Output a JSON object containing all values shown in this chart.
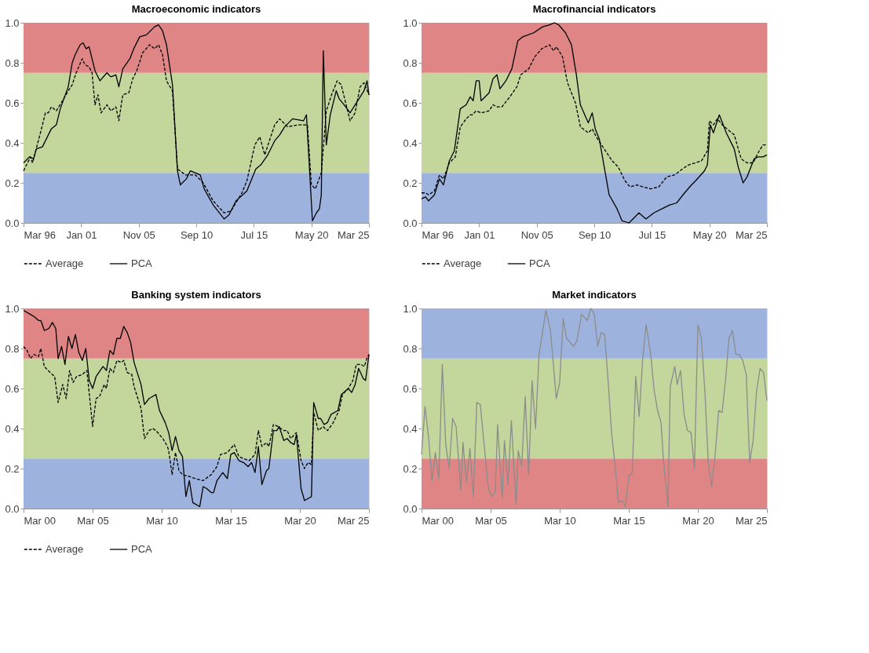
{
  "chart_data": [
    {
      "type": "line",
      "title": "Macroeconomic indicators",
      "legend": "bottom",
      "xlim": [
        "1996-03",
        "2025-03"
      ],
      "xticks": [
        {
          "value": "1996-03",
          "label": "Mar 96"
        },
        {
          "value": "2001-01",
          "label": "Jan 01"
        },
        {
          "value": "2005-11",
          "label": "Nov 05"
        },
        {
          "value": "2010-09",
          "label": "Sep 10"
        },
        {
          "value": "2015-07",
          "label": "Jul 15"
        },
        {
          "value": "2020-05",
          "label": "May 20"
        },
        {
          "value": "2025-03",
          "label": "Mar 25"
        }
      ],
      "ylim": [
        0,
        1
      ],
      "yticks": [
        {
          "value": 0,
          "label": "0.0"
        },
        {
          "value": 0.2,
          "label": "0.2"
        },
        {
          "value": 0.4,
          "label": "0.4"
        },
        {
          "value": 0.6,
          "label": "0.6"
        },
        {
          "value": 0.8,
          "label": "0.8"
        },
        {
          "value": 1,
          "label": "1.0"
        }
      ],
      "bands": [
        {
          "axis": "y",
          "from": 0,
          "to": 0.25,
          "color": "#9db3dd"
        },
        {
          "axis": "y",
          "from": 0.25,
          "to": 0.75,
          "color": "#c3d69b"
        },
        {
          "axis": "y",
          "from": 0.75,
          "to": 1,
          "color": "#e08585"
        }
      ],
      "series": [
        {
          "name": "Average",
          "color": "#000000",
          "line_style": "dashed",
          "x": [
            "1996-03",
            "1996-10",
            "1996-12",
            "1997-08",
            "1998-01",
            "1998-04",
            "1998-07",
            "1998-12",
            "1999-05",
            "1999-12",
            "2000-04",
            "2000-08",
            "2001-02",
            "2001-05",
            "2001-09",
            "2001-12",
            "2002-03",
            "2002-06",
            "2002-09",
            "2003-03",
            "2003-07",
            "2003-12",
            "2004-03",
            "2004-07",
            "2005-01",
            "2005-05",
            "2005-09",
            "2006-03",
            "2006-10",
            "2007-03",
            "2007-07",
            "2007-11",
            "2008-03",
            "2008-09",
            "2009-02",
            "2009-10",
            "2010-08",
            "2011-04",
            "2012-02",
            "2013-01",
            "2013-08",
            "2014-07",
            "2014-12",
            "2015-08",
            "2016-01",
            "2016-06",
            "2016-08",
            "2017-04",
            "2017-09",
            "2018-05",
            "2019-04",
            "2020-01",
            "2020-05",
            "2020-09",
            "2021-03",
            "2021-08",
            "2022-02",
            "2022-07",
            "2022-11",
            "2023-08",
            "2024-01",
            "2024-06",
            "2024-10",
            "2025-03"
          ],
          "values": [
            0.26,
            0.33,
            0.3,
            0.45,
            0.55,
            0.55,
            0.58,
            0.56,
            0.6,
            0.66,
            0.69,
            0.75,
            0.82,
            0.79,
            0.78,
            0.75,
            0.59,
            0.64,
            0.55,
            0.59,
            0.56,
            0.58,
            0.51,
            0.64,
            0.65,
            0.72,
            0.76,
            0.85,
            0.89,
            0.87,
            0.89,
            0.84,
            0.71,
            0.66,
            0.27,
            0.24,
            0.24,
            0.2,
            0.11,
            0.05,
            0.06,
            0.15,
            0.21,
            0.39,
            0.43,
            0.34,
            0.37,
            0.49,
            0.52,
            0.48,
            0.49,
            0.49,
            0.19,
            0.17,
            0.25,
            0.56,
            0.65,
            0.71,
            0.69,
            0.51,
            0.55,
            0.68,
            0.7,
            0.64
          ]
        },
        {
          "name": "PCA",
          "color": "#000000",
          "line_style": "solid",
          "x": [
            "1996-03",
            "1996-09",
            "1997-01",
            "1997-04",
            "1997-10",
            "1998-07",
            "1998-12",
            "1999-04",
            "1999-12",
            "2000-04",
            "2000-07",
            "2000-12",
            "2001-03",
            "2001-06",
            "2001-09",
            "2002-03",
            "2002-08",
            "2003-03",
            "2003-07",
            "2003-12",
            "2004-03",
            "2004-07",
            "2005-02",
            "2005-06",
            "2005-12",
            "2006-07",
            "2007-03",
            "2007-07",
            "2007-11",
            "2008-03",
            "2008-09",
            "2009-02",
            "2009-05",
            "2009-11",
            "2010-03",
            "2011-01",
            "2011-05",
            "2012-02",
            "2013-01",
            "2013-06",
            "2014-01",
            "2014-12",
            "2015-09",
            "2016-02",
            "2016-09",
            "2017-04",
            "2017-09",
            "2018-02",
            "2018-10",
            "2019-09",
            "2019-12",
            "2020-06",
            "2020-10",
            "2021-01",
            "2021-03",
            "2021-05",
            "2021-08",
            "2021-12",
            "2022-06",
            "2022-09",
            "2023-02",
            "2023-08",
            "2024-01",
            "2024-10",
            "2025-01",
            "2025-03"
          ],
          "values": [
            0.3,
            0.33,
            0.32,
            0.37,
            0.38,
            0.47,
            0.49,
            0.57,
            0.68,
            0.8,
            0.84,
            0.89,
            0.9,
            0.87,
            0.88,
            0.76,
            0.71,
            0.75,
            0.73,
            0.74,
            0.68,
            0.77,
            0.82,
            0.87,
            0.93,
            0.94,
            0.98,
            0.99,
            0.96,
            0.89,
            0.69,
            0.26,
            0.19,
            0.22,
            0.26,
            0.24,
            0.17,
            0.09,
            0.02,
            0.04,
            0.11,
            0.16,
            0.27,
            0.29,
            0.34,
            0.41,
            0.44,
            0.48,
            0.52,
            0.51,
            0.54,
            0.01,
            0.05,
            0.07,
            0.14,
            0.86,
            0.39,
            0.54,
            0.66,
            0.62,
            0.59,
            0.55,
            0.59,
            0.66,
            0.71,
            0.64
          ]
        }
      ]
    },
    {
      "type": "line",
      "title": "Macrofinancial indicators",
      "legend": "bottom",
      "xlim": [
        "1996-03",
        "2025-03"
      ],
      "xticks": [
        {
          "value": "1996-03",
          "label": "Mar 96"
        },
        {
          "value": "2001-01",
          "label": "Jan 01"
        },
        {
          "value": "2005-11",
          "label": "Nov 05"
        },
        {
          "value": "2010-09",
          "label": "Sep 10"
        },
        {
          "value": "2015-07",
          "label": "Jul 15"
        },
        {
          "value": "2020-05",
          "label": "May 20"
        },
        {
          "value": "2025-03",
          "label": "Mar 25"
        }
      ],
      "ylim": [
        0,
        1
      ],
      "yticks": [
        {
          "value": 0,
          "label": "0.0"
        },
        {
          "value": 0.2,
          "label": "0.2"
        },
        {
          "value": 0.4,
          "label": "0.4"
        },
        {
          "value": 0.6,
          "label": "0.6"
        },
        {
          "value": 0.8,
          "label": "0.8"
        },
        {
          "value": 1,
          "label": "1.0"
        }
      ],
      "bands": [
        {
          "axis": "y",
          "from": 0,
          "to": 0.25,
          "color": "#9db3dd"
        },
        {
          "axis": "y",
          "from": 0.25,
          "to": 0.75,
          "color": "#c3d69b"
        },
        {
          "axis": "y",
          "from": 0.75,
          "to": 1,
          "color": "#e08585"
        }
      ],
      "series": [
        {
          "name": "Average",
          "color": "#000000",
          "line_style": "dashed",
          "x": [
            "1996-03",
            "1996-07",
            "1996-10",
            "1997-04",
            "1997-09",
            "1998-01",
            "1998-07",
            "1999-01",
            "1999-06",
            "1999-12",
            "2000-04",
            "2000-06",
            "2000-10",
            "2001-03",
            "2001-11",
            "2002-03",
            "2002-07",
            "2002-12",
            "2003-08",
            "2004-03",
            "2004-07",
            "2005-03",
            "2005-09",
            "2006-04",
            "2006-12",
            "2007-04",
            "2007-07",
            "2008-01",
            "2008-06",
            "2009-02",
            "2009-07",
            "2010-03",
            "2010-07",
            "2010-11",
            "2011-07",
            "2012-03",
            "2012-09",
            "2013-04",
            "2013-09",
            "2014-04",
            "2014-10",
            "2015-06",
            "2016-02",
            "2016-10",
            "2017-06",
            "2018-02",
            "2018-08",
            "2019-03",
            "2019-09",
            "2020-03",
            "2020-05",
            "2020-09",
            "2021-01",
            "2021-06",
            "2022-01",
            "2022-06",
            "2023-01",
            "2023-07",
            "2024-01",
            "2024-06",
            "2024-11",
            "2025-03"
          ],
          "values": [
            0.15,
            0.15,
            0.14,
            0.16,
            0.24,
            0.22,
            0.3,
            0.33,
            0.48,
            0.52,
            0.54,
            0.54,
            0.56,
            0.55,
            0.56,
            0.59,
            0.58,
            0.58,
            0.63,
            0.68,
            0.74,
            0.77,
            0.83,
            0.87,
            0.89,
            0.86,
            0.88,
            0.83,
            0.7,
            0.6,
            0.48,
            0.45,
            0.47,
            0.43,
            0.37,
            0.31,
            0.28,
            0.21,
            0.18,
            0.19,
            0.18,
            0.17,
            0.18,
            0.23,
            0.24,
            0.27,
            0.29,
            0.3,
            0.31,
            0.36,
            0.51,
            0.49,
            0.52,
            0.49,
            0.46,
            0.44,
            0.32,
            0.3,
            0.3,
            0.35,
            0.39,
            0.39
          ]
        },
        {
          "name": "PCA",
          "color": "#000000",
          "line_style": "solid",
          "x": [
            "1996-03",
            "1996-07",
            "1996-10",
            "1997-04",
            "1997-09",
            "1998-01",
            "1998-07",
            "1998-12",
            "1999-06",
            "1999-12",
            "2000-04",
            "2000-07",
            "2000-10",
            "2001-01",
            "2001-03",
            "2001-11",
            "2002-03",
            "2002-07",
            "2002-10",
            "2003-04",
            "2003-10",
            "2004-04",
            "2004-09",
            "2005-08",
            "2006-05",
            "2006-12",
            "2007-05",
            "2007-09",
            "2008-04",
            "2008-10",
            "2009-03",
            "2009-07",
            "2010-03",
            "2010-07",
            "2010-10",
            "2011-02",
            "2011-12",
            "2012-08",
            "2013-01",
            "2013-08",
            "2014-06",
            "2015-01",
            "2015-09",
            "2016-05",
            "2017-01",
            "2017-08",
            "2018-04",
            "2018-11",
            "2019-03",
            "2019-12",
            "2020-03",
            "2020-06",
            "2020-09",
            "2021-03",
            "2021-10",
            "2022-06",
            "2022-10",
            "2023-03",
            "2023-07",
            "2024-02",
            "2024-06",
            "2024-11",
            "2025-03"
          ],
          "values": [
            0.12,
            0.13,
            0.11,
            0.14,
            0.22,
            0.19,
            0.31,
            0.36,
            0.57,
            0.59,
            0.63,
            0.61,
            0.71,
            0.71,
            0.61,
            0.65,
            0.72,
            0.74,
            0.67,
            0.71,
            0.77,
            0.91,
            0.93,
            0.95,
            0.98,
            0.99,
            1.0,
            0.99,
            0.95,
            0.89,
            0.74,
            0.59,
            0.5,
            0.55,
            0.47,
            0.42,
            0.14,
            0.07,
            0.01,
            0.0,
            0.05,
            0.02,
            0.05,
            0.07,
            0.09,
            0.1,
            0.15,
            0.19,
            0.21,
            0.26,
            0.29,
            0.49,
            0.45,
            0.54,
            0.45,
            0.37,
            0.28,
            0.2,
            0.23,
            0.32,
            0.33,
            0.33,
            0.34
          ]
        }
      ]
    },
    {
      "type": "line",
      "title": "Banking system indicators",
      "legend": "bottom",
      "xlim": [
        "2000-03",
        "2025-03"
      ],
      "xticks": [
        {
          "value": "2000-03",
          "label": "Mar 00"
        },
        {
          "value": "2005-03",
          "label": "Mar 05"
        },
        {
          "value": "2010-03",
          "label": "Mar 10"
        },
        {
          "value": "2015-03",
          "label": "Mar 15"
        },
        {
          "value": "2020-03",
          "label": "Mar 20"
        },
        {
          "value": "2025-03",
          "label": "Mar 25"
        }
      ],
      "ylim": [
        0,
        1
      ],
      "yticks": [
        {
          "value": 0,
          "label": "0.0"
        },
        {
          "value": 0.2,
          "label": "0.2"
        },
        {
          "value": 0.4,
          "label": "0.4"
        },
        {
          "value": 0.6,
          "label": "0.6"
        },
        {
          "value": 0.8,
          "label": "0.8"
        },
        {
          "value": 1,
          "label": "1.0"
        }
      ],
      "bands": [
        {
          "axis": "y",
          "from": 0,
          "to": 0.25,
          "color": "#9db3dd"
        },
        {
          "axis": "y",
          "from": 0.25,
          "to": 0.75,
          "color": "#c3d69b"
        },
        {
          "axis": "y",
          "from": 0.75,
          "to": 1,
          "color": "#e08585"
        }
      ],
      "series": [
        {
          "name": "Average",
          "color": "#000000",
          "line_style": "dashed",
          "x": [
            "2000-03",
            "2000-06",
            "2000-09",
            "2000-12",
            "2001-04",
            "2001-06",
            "2001-09",
            "2002-02",
            "2002-06",
            "2002-09",
            "2003-01",
            "2003-04",
            "2003-07",
            "2003-10",
            "2004-01",
            "2004-06",
            "2004-10",
            "2005-03",
            "2005-06",
            "2005-09",
            "2006-01",
            "2006-03",
            "2006-06",
            "2006-09",
            "2006-12",
            "2007-04",
            "2007-06",
            "2007-09",
            "2008-01",
            "2008-03",
            "2008-09",
            "2008-12",
            "2009-04",
            "2009-07",
            "2009-10",
            "2010-04",
            "2010-08",
            "2010-09",
            "2010-12",
            "2011-03",
            "2011-06",
            "2011-09",
            "2012-03",
            "2012-08",
            "2013-03",
            "2013-10",
            "2014-03",
            "2014-06",
            "2014-12",
            "2015-06",
            "2015-10",
            "2016-02",
            "2016-07",
            "2016-12",
            "2017-03",
            "2017-06",
            "2017-10",
            "2017-12",
            "2018-04",
            "2018-08",
            "2019-01",
            "2019-04",
            "2019-07",
            "2019-12",
            "2020-04",
            "2020-07",
            "2020-10",
            "2021-01",
            "2021-03",
            "2021-07",
            "2021-11",
            "2022-03",
            "2022-08",
            "2023-01",
            "2023-04",
            "2023-09",
            "2024-01",
            "2024-04",
            "2024-08",
            "2024-11",
            "2025-01",
            "2025-03"
          ],
          "values": [
            0.81,
            0.79,
            0.75,
            0.77,
            0.76,
            0.8,
            0.71,
            0.68,
            0.66,
            0.53,
            0.62,
            0.55,
            0.69,
            0.63,
            0.66,
            0.67,
            0.69,
            0.41,
            0.55,
            0.56,
            0.62,
            0.6,
            0.7,
            0.68,
            0.74,
            0.73,
            0.74,
            0.68,
            0.67,
            0.61,
            0.5,
            0.35,
            0.39,
            0.4,
            0.39,
            0.35,
            0.31,
            0.29,
            0.17,
            0.28,
            0.19,
            0.17,
            0.16,
            0.15,
            0.14,
            0.17,
            0.21,
            0.27,
            0.28,
            0.32,
            0.26,
            0.25,
            0.24,
            0.27,
            0.39,
            0.31,
            0.33,
            0.31,
            0.42,
            0.41,
            0.39,
            0.39,
            0.35,
            0.38,
            0.24,
            0.2,
            0.23,
            0.22,
            0.48,
            0.39,
            0.41,
            0.39,
            0.43,
            0.49,
            0.57,
            0.6,
            0.64,
            0.72,
            0.72,
            0.71,
            0.75,
            0.77
          ]
        },
        {
          "name": "PCA",
          "color": "#000000",
          "line_style": "solid",
          "x": [
            "2000-03",
            "2000-09",
            "2000-12",
            "2001-04",
            "2001-06",
            "2001-09",
            "2002-01",
            "2002-04",
            "2002-07",
            "2002-09",
            "2002-12",
            "2003-03",
            "2003-06",
            "2003-09",
            "2003-12",
            "2004-03",
            "2004-06",
            "2004-09",
            "2004-12",
            "2005-03",
            "2005-06",
            "2005-12",
            "2006-03",
            "2006-06",
            "2006-09",
            "2006-12",
            "2007-03",
            "2007-06",
            "2007-09",
            "2007-12",
            "2008-03",
            "2008-09",
            "2008-12",
            "2009-04",
            "2009-07",
            "2009-10",
            "2010-01",
            "2010-06",
            "2010-09",
            "2010-12",
            "2011-03",
            "2011-06",
            "2011-09",
            "2011-12",
            "2012-03",
            "2012-06",
            "2012-12",
            "2013-03",
            "2013-06",
            "2013-10",
            "2013-12",
            "2014-03",
            "2014-08",
            "2014-12",
            "2015-03",
            "2015-06",
            "2015-10",
            "2016-02",
            "2016-06",
            "2016-09",
            "2016-12",
            "2017-03",
            "2017-06",
            "2017-10",
            "2017-12",
            "2018-04",
            "2018-07",
            "2018-09",
            "2019-01",
            "2019-04",
            "2019-07",
            "2019-10",
            "2019-12",
            "2020-04",
            "2020-07",
            "2020-10",
            "2021-01",
            "2021-03",
            "2021-07",
            "2021-09",
            "2021-12",
            "2022-03",
            "2022-06",
            "2022-12",
            "2023-03",
            "2023-09",
            "2023-12",
            "2024-03",
            "2024-06",
            "2024-10",
            "2024-12",
            "2025-03"
          ],
          "values": [
            0.99,
            0.97,
            0.96,
            0.94,
            0.94,
            0.89,
            0.9,
            0.93,
            0.9,
            0.75,
            0.81,
            0.72,
            0.86,
            0.8,
            0.87,
            0.78,
            0.74,
            0.8,
            0.64,
            0.6,
            0.66,
            0.71,
            0.69,
            0.79,
            0.77,
            0.85,
            0.85,
            0.91,
            0.88,
            0.83,
            0.73,
            0.62,
            0.52,
            0.55,
            0.56,
            0.57,
            0.49,
            0.43,
            0.38,
            0.29,
            0.36,
            0.29,
            0.26,
            0.06,
            0.14,
            0.03,
            0.01,
            0.11,
            0.1,
            0.08,
            0.08,
            0.14,
            0.18,
            0.15,
            0.27,
            0.28,
            0.24,
            0.23,
            0.21,
            0.23,
            0.18,
            0.31,
            0.12,
            0.19,
            0.2,
            0.39,
            0.39,
            0.41,
            0.34,
            0.35,
            0.33,
            0.32,
            0.37,
            0.1,
            0.04,
            0.05,
            0.06,
            0.53,
            0.45,
            0.45,
            0.42,
            0.43,
            0.47,
            0.49,
            0.57,
            0.6,
            0.58,
            0.62,
            0.7,
            0.65,
            0.64,
            0.77
          ]
        }
      ]
    },
    {
      "type": "line",
      "title": "Market indicators",
      "xlim": [
        "2000-03",
        "2025-03"
      ],
      "xticks": [
        {
          "value": "2000-03",
          "label": "Mar 00"
        },
        {
          "value": "2005-03",
          "label": "Mar 05"
        },
        {
          "value": "2010-03",
          "label": "Mar 10"
        },
        {
          "value": "2015-03",
          "label": "Mar 15"
        },
        {
          "value": "2020-03",
          "label": "Mar 20"
        },
        {
          "value": "2025-03",
          "label": "Mar 25"
        }
      ],
      "ylim": [
        0,
        1
      ],
      "yticks": [
        {
          "value": 0,
          "label": "0.0"
        },
        {
          "value": 0.2,
          "label": "0.2"
        },
        {
          "value": 0.4,
          "label": "0.4"
        },
        {
          "value": 0.6,
          "label": "0.6"
        },
        {
          "value": 0.8,
          "label": "0.8"
        },
        {
          "value": 1,
          "label": "1.0"
        }
      ],
      "bands": [
        {
          "axis": "y",
          "from": 0,
          "to": 0.25,
          "color": "#e08585"
        },
        {
          "axis": "y",
          "from": 0.25,
          "to": 0.75,
          "color": "#c3d69b"
        },
        {
          "axis": "y",
          "from": 0.75,
          "to": 1,
          "color": "#9db3dd"
        }
      ],
      "series": [
        {
          "color": "#8c8c8c",
          "line_style": "solid",
          "x": [
            "2000-03",
            "2000-06",
            "2000-09",
            "2000-12",
            "2001-03",
            "2001-06",
            "2001-09",
            "2001-12",
            "2002-03",
            "2002-06",
            "2002-09",
            "2003-01",
            "2003-03",
            "2003-06",
            "2003-09",
            "2003-12",
            "2004-03",
            "2004-06",
            "2005-01",
            "2005-04",
            "2005-07",
            "2005-09",
            "2006-01",
            "2006-03",
            "2006-06",
            "2006-09",
            "2007-01",
            "2007-03",
            "2007-06",
            "2007-09",
            "2007-12",
            "2008-03",
            "2008-06",
            "2008-09",
            "2008-12",
            "2009-03",
            "2009-07",
            "2009-12",
            "2010-03",
            "2010-06",
            "2010-09",
            "2011-03",
            "2011-06",
            "2011-10",
            "2012-03",
            "2012-06",
            "2012-09",
            "2012-12",
            "2013-03",
            "2013-06",
            "2013-09",
            "2013-12",
            "2014-03",
            "2014-06",
            "2014-09",
            "2014-12",
            "2015-03",
            "2015-06",
            "2015-09",
            "2015-12",
            "2016-03",
            "2016-06",
            "2016-10",
            "2017-01",
            "2017-04",
            "2017-07",
            "2017-09",
            "2018-01",
            "2018-03",
            "2018-07",
            "2018-09",
            "2018-12",
            "2019-03",
            "2019-06",
            "2019-09",
            "2019-12",
            "2020-03",
            "2020-06",
            "2020-09",
            "2020-12",
            "2021-03",
            "2021-06",
            "2021-09",
            "2021-12",
            "2022-03",
            "2022-06",
            "2022-09",
            "2022-12",
            "2023-03",
            "2023-06",
            "2023-09",
            "2023-12",
            "2024-03",
            "2024-06",
            "2024-09",
            "2024-12",
            "2025-03"
          ],
          "values": [
            0.27,
            0.51,
            0.36,
            0.14,
            0.28,
            0.15,
            0.72,
            0.32,
            0.2,
            0.45,
            0.41,
            0.09,
            0.33,
            0.13,
            0.3,
            0.06,
            0.53,
            0.52,
            0.1,
            0.06,
            0.08,
            0.42,
            0.05,
            0.34,
            0.12,
            0.44,
            0.02,
            0.29,
            0.21,
            0.56,
            0.17,
            0.64,
            0.4,
            0.77,
            0.88,
            0.99,
            0.89,
            0.55,
            0.63,
            0.95,
            0.85,
            0.81,
            0.84,
            0.97,
            0.94,
            1.0,
            0.97,
            0.81,
            0.88,
            0.87,
            0.64,
            0.38,
            0.22,
            0.03,
            0.04,
            0.01,
            0.16,
            0.18,
            0.66,
            0.46,
            0.74,
            0.92,
            0.77,
            0.59,
            0.49,
            0.43,
            0.25,
            0.01,
            0.61,
            0.71,
            0.62,
            0.69,
            0.47,
            0.39,
            0.38,
            0.2,
            0.92,
            0.85,
            0.59,
            0.23,
            0.11,
            0.27,
            0.49,
            0.48,
            0.64,
            0.85,
            0.89,
            0.77,
            0.77,
            0.74,
            0.67,
            0.23,
            0.34,
            0.59,
            0.7,
            0.68,
            0.54
          ]
        }
      ]
    }
  ]
}
